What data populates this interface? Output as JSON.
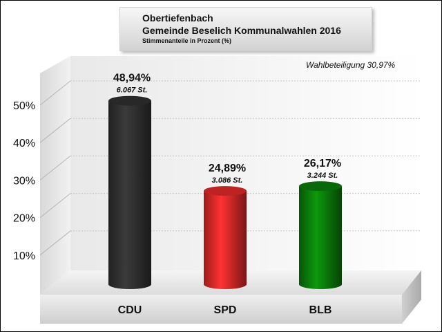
{
  "title": {
    "line1": "Obertiefenbach",
    "line2": "Gemeinde Beselich Kommunalwahlen 2016",
    "subtitle": "Stimmenanteile in Prozent (%)"
  },
  "annotation": "Wahlbeteiligung 30,97%",
  "chart_data": {
    "type": "bar",
    "categories": [
      "CDU",
      "SPD",
      "BLB"
    ],
    "values": [
      48.94,
      24.89,
      26.17
    ],
    "value_labels": [
      "48,94%",
      "24,89%",
      "26,17%"
    ],
    "vote_labels": [
      "6.067 St.",
      "3.086 St.",
      "3.244 St."
    ],
    "colors": [
      "#2f2f2f",
      "#e02828",
      "#0a7a0a"
    ],
    "y_ticks": [
      10,
      20,
      30,
      40,
      50
    ],
    "y_tick_labels": [
      "10%",
      "20%",
      "30%",
      "40%",
      "50%"
    ],
    "ylim": [
      0,
      55
    ],
    "grid": true,
    "style": "3d-cylinder"
  }
}
